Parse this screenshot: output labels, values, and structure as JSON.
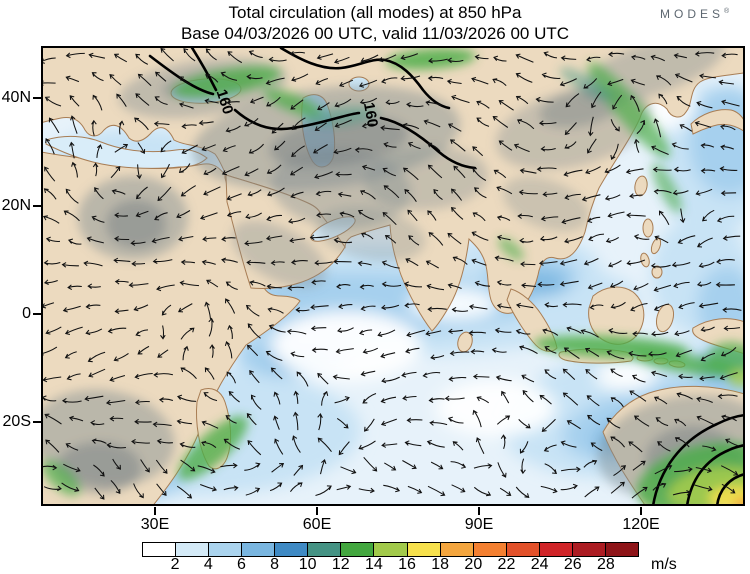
{
  "title": {
    "line1": "Total circulation (all modes) at 850 hPa",
    "line2": "Base 04/03/2026 00 UTC, valid 11/03/2026 00 UTC"
  },
  "logo": {
    "text": "MODES",
    "mark": "®"
  },
  "axes": {
    "lat_ticks": [
      "40N",
      "20N",
      "0",
      "20S"
    ],
    "lon_ticks": [
      "30E",
      "60E",
      "90E",
      "120E"
    ]
  },
  "map": {
    "contour_label": "160"
  },
  "colorbar": {
    "tick_labels": [
      "2",
      "4",
      "6",
      "8",
      "10",
      "12",
      "14",
      "16",
      "18",
      "20",
      "22",
      "24",
      "26",
      "28"
    ],
    "unit": "m/s",
    "colors": [
      "#ffffff",
      "#d4eaf7",
      "#abd4ee",
      "#7ab6e0",
      "#3f8ac4",
      "#459384",
      "#43a73f",
      "#a2ca4b",
      "#f7e14d",
      "#f4a63f",
      "#f48031",
      "#e2512a",
      "#d02428",
      "#ac1c22",
      "#8e1418"
    ]
  },
  "palette": {
    "land": "#ecdabf",
    "coastline": "#a87d54",
    "ocean": "#e7f2fa",
    "gray_shading": "#7f8b90",
    "green_shading": "#4fae4b",
    "contour": "#000000"
  },
  "chart_data": {
    "type": "heatmap",
    "title": "Total circulation (all modes) at 850 hPa",
    "subtitle": "Base 04/03/2026 00 UTC, valid 11/03/2026 00 UTC",
    "field": "850 hPa total circulation: wind speed shading with wind direction vectors (quiver) over the Africa / Indian Ocean / Asia / Australia domain",
    "unit": "m/s",
    "colorbar_levels": [
      2,
      4,
      6,
      8,
      10,
      12,
      14,
      16,
      18,
      20,
      22,
      24,
      26,
      28
    ],
    "colorbar_colors": [
      "#ffffff",
      "#d4eaf7",
      "#abd4ee",
      "#7ab6e0",
      "#3f8ac4",
      "#459384",
      "#43a73f",
      "#a2ca4b",
      "#f7e14d",
      "#f4a63f",
      "#f48031",
      "#e2512a",
      "#d02428",
      "#ac1c22",
      "#8e1418"
    ],
    "x_tick_labels": [
      "30E",
      "60E",
      "90E",
      "120E"
    ],
    "y_tick_labels": [
      "40N",
      "20N",
      "0",
      "20S"
    ],
    "lon_range_approx_deg": [
      10,
      139
    ],
    "lat_range_approx_deg": [
      -35,
      50
    ],
    "contour_labels": [
      "160",
      "160"
    ],
    "legend_position": "bottom",
    "grid": false
  }
}
